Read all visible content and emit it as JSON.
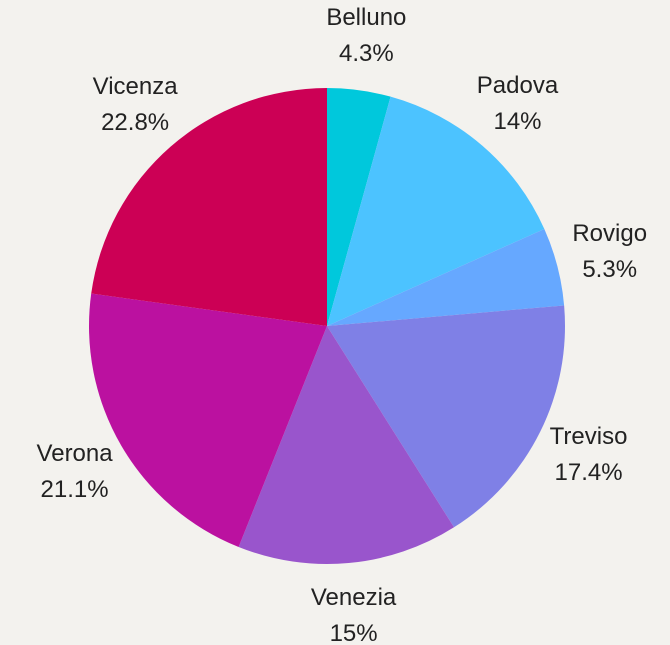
{
  "chart_data": {
    "type": "pie",
    "categories": [
      "Belluno",
      "Padova",
      "Rovigo",
      "Treviso",
      "Venezia",
      "Verona",
      "Vicenza"
    ],
    "values": [
      4.3,
      14,
      5.3,
      17.4,
      15,
      21.1,
      22.8
    ],
    "value_labels": [
      "4.3%",
      "14%",
      "5.3%",
      "17.4%",
      "15%",
      "21.1%",
      "22.8%"
    ],
    "colors": [
      "#00c8dc",
      "#4cc3ff",
      "#66a8ff",
      "#7f80e6",
      "#9955cc",
      "#bb11a0",
      "#cc0055"
    ]
  }
}
